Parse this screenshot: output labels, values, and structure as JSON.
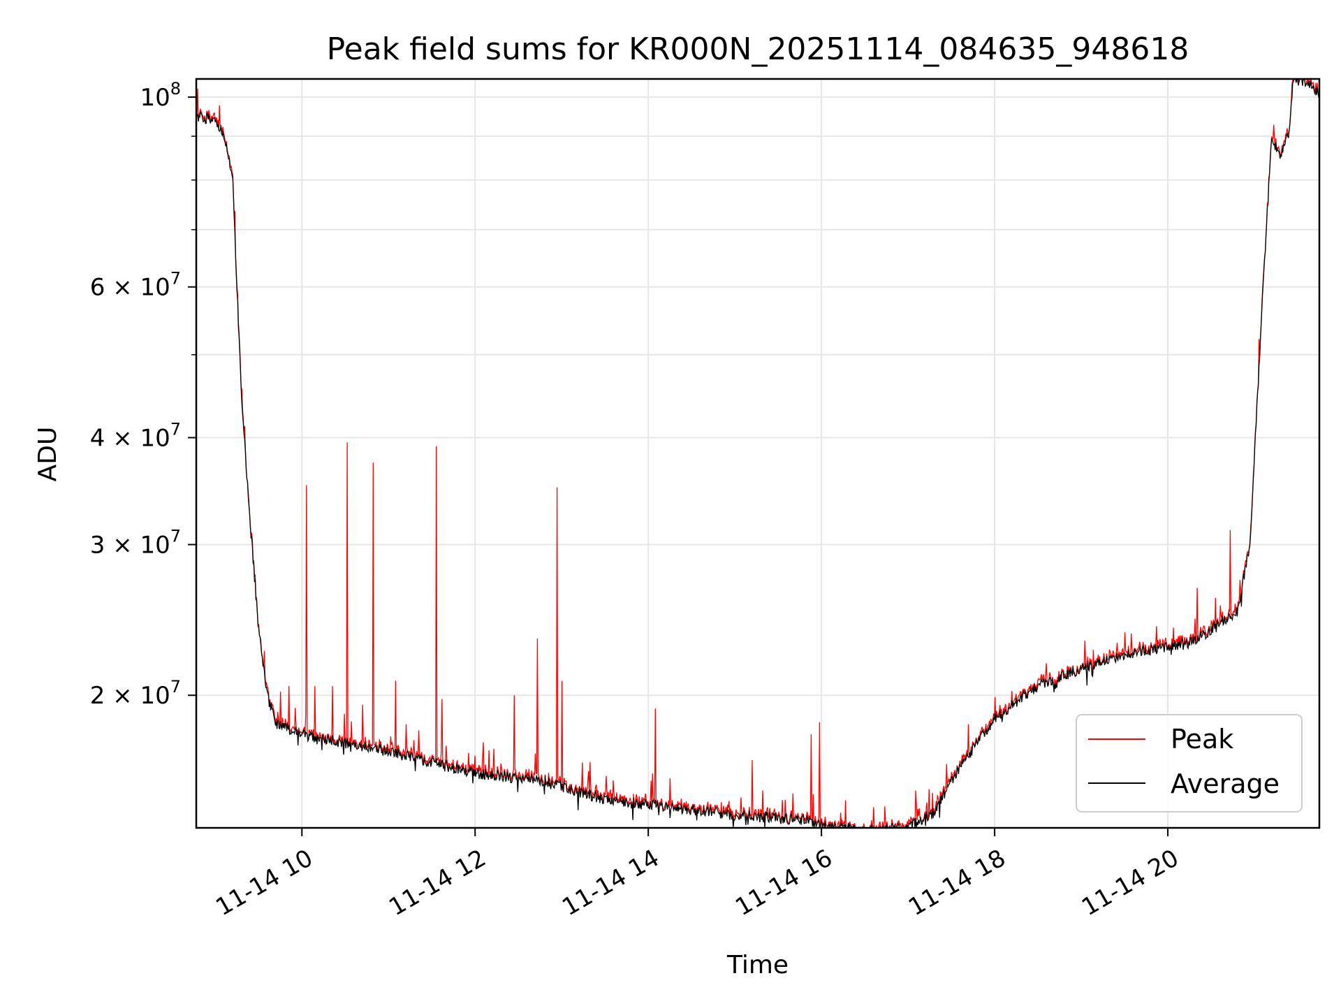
{
  "chart_data": {
    "type": "line",
    "title": "Peak field sums for KR000N_20251114_084635_948618",
    "xlabel": "Time",
    "ylabel": "ADU",
    "yscale": "log",
    "grid": true,
    "legend_position": "lower-right",
    "x_unit": "hours (local, 2025-11-14)",
    "xlim": [
      8.78,
      21.75
    ],
    "ylim": [
      14000000,
      105000000
    ],
    "x_tick_labels": [
      {
        "x": 10,
        "label": "11-14 10"
      },
      {
        "x": 12,
        "label": "11-14 12"
      },
      {
        "x": 14,
        "label": "11-14 14"
      },
      {
        "x": 16,
        "label": "11-14 16"
      },
      {
        "x": 18,
        "label": "11-14 18"
      },
      {
        "x": 20,
        "label": "11-14 20"
      }
    ],
    "y_tick_labels": [
      {
        "y": 100000000,
        "base": "10",
        "mant": "",
        "exp": "8"
      },
      {
        "y": 60000000,
        "base": "10",
        "mant": "6 × ",
        "exp": "7"
      },
      {
        "y": 40000000,
        "base": "10",
        "mant": "4 × ",
        "exp": "7"
      },
      {
        "y": 30000000,
        "base": "10",
        "mant": "3 × ",
        "exp": "7"
      },
      {
        "y": 20000000,
        "base": "10",
        "mant": "2 × ",
        "exp": "7"
      }
    ],
    "y_minor_gridlines": [
      50000000,
      70000000,
      80000000,
      90000000
    ],
    "series": [
      {
        "name": "Peak",
        "color": "#ff0000"
      },
      {
        "name": "Average",
        "color": "#000000"
      }
    ],
    "average_baseline": [
      [
        8.78,
        95000000
      ],
      [
        9.0,
        94000000
      ],
      [
        9.1,
        90000000
      ],
      [
        9.2,
        80000000
      ],
      [
        9.3,
        45000000
      ],
      [
        9.4,
        32000000
      ],
      [
        9.5,
        24000000
      ],
      [
        9.6,
        20000000
      ],
      [
        9.7,
        18500000
      ],
      [
        10.0,
        18000000
      ],
      [
        11.0,
        17200000
      ],
      [
        12.0,
        16200000
      ],
      [
        12.8,
        15900000
      ],
      [
        13.5,
        15100000
      ],
      [
        14.0,
        14900000
      ],
      [
        15.0,
        14500000
      ],
      [
        15.8,
        14300000
      ],
      [
        16.0,
        14100000
      ],
      [
        16.5,
        13900000
      ],
      [
        17.0,
        14000000
      ],
      [
        17.3,
        14600000
      ],
      [
        17.6,
        16500000
      ],
      [
        18.0,
        18800000
      ],
      [
        18.5,
        20500000
      ],
      [
        19.0,
        21500000
      ],
      [
        19.5,
        22300000
      ],
      [
        20.0,
        22800000
      ],
      [
        20.3,
        23100000
      ],
      [
        20.6,
        24300000
      ],
      [
        20.8,
        25000000
      ],
      [
        20.95,
        30000000
      ],
      [
        21.1,
        60000000
      ],
      [
        21.2,
        90000000
      ],
      [
        21.3,
        85000000
      ],
      [
        21.4,
        91000000
      ],
      [
        21.45,
        105000000
      ],
      [
        21.6,
        104000000
      ],
      [
        21.75,
        101000000
      ]
    ],
    "peak_spikes": [
      [
        9.75,
        20200000
      ],
      [
        9.85,
        20500000
      ],
      [
        10.05,
        35200000
      ],
      [
        10.15,
        20500000
      ],
      [
        10.35,
        20500000
      ],
      [
        10.52,
        39500000
      ],
      [
        10.7,
        19500000
      ],
      [
        10.82,
        37400000
      ],
      [
        11.08,
        20800000
      ],
      [
        11.2,
        18500000
      ],
      [
        11.35,
        18200000
      ],
      [
        11.55,
        39100000
      ],
      [
        11.62,
        19800000
      ],
      [
        12.0,
        17000000
      ],
      [
        12.45,
        20000000
      ],
      [
        12.72,
        23300000
      ],
      [
        12.95,
        35000000
      ],
      [
        13.0,
        20800000
      ],
      [
        13.3,
        16000000
      ],
      [
        14.08,
        19300000
      ],
      [
        14.25,
        16000000
      ],
      [
        15.2,
        16800000
      ],
      [
        15.88,
        18000000
      ],
      [
        15.98,
        18600000
      ],
      [
        16.6,
        14800000
      ],
      [
        17.1,
        14900000
      ],
      [
        17.7,
        18500000
      ],
      [
        18.6,
        21800000
      ],
      [
        19.2,
        22300000
      ],
      [
        19.8,
        22600000
      ],
      [
        20.34,
        26700000
      ],
      [
        20.55,
        26000000
      ],
      [
        20.72,
        31200000
      ]
    ]
  }
}
